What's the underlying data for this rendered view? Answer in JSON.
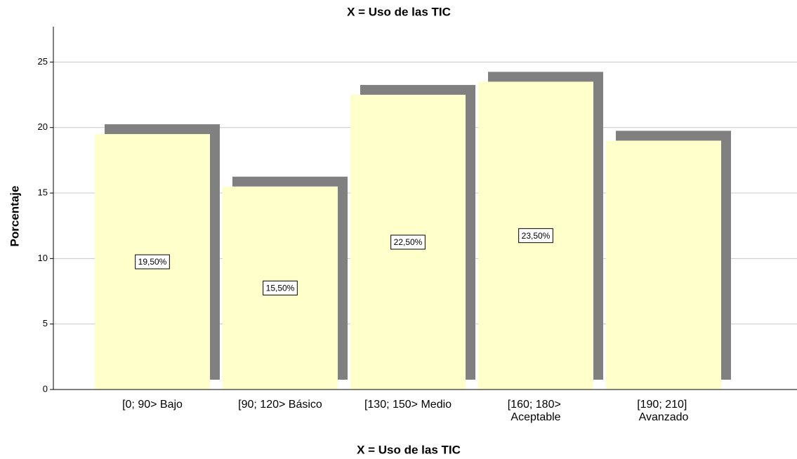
{
  "chart_data": {
    "type": "bar",
    "title": "X = Uso de las TIC",
    "x_label": "X = Uso de las TIC",
    "y_label": "Porcentaje",
    "categories": [
      "[0; 90> Bajo",
      "[90; 120> Básico",
      "[130; 150> Medio",
      "[160; 180> Aceptable",
      "[190; 210] Avanzado"
    ],
    "values": [
      19.5,
      15.5,
      22.5,
      23.5,
      19.0
    ],
    "value_labels": [
      "19,50%",
      "15,50%",
      "22,50%",
      "23,50%",
      null
    ],
    "color": "#ffffcc",
    "shadow_color": "#808080",
    "ylim": [
      0,
      27.7
    ],
    "yticks": [
      0,
      5,
      10,
      15,
      20,
      25
    ],
    "grid": true
  }
}
